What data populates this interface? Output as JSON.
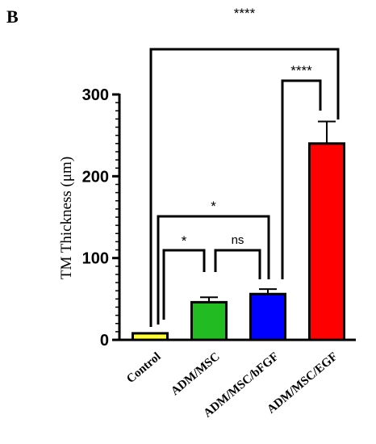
{
  "panel_label": "B",
  "chart_data": {
    "type": "bar",
    "categories": [
      "Control",
      "ADM/MSC",
      "ADM/MSC/bFGF",
      "ADM/MSC/EGF"
    ],
    "values": [
      8,
      46,
      56,
      240
    ],
    "errors": [
      0,
      6,
      6,
      27
    ],
    "colors": [
      "#ffff33",
      "#22bb22",
      "#0000ff",
      "#ff0000"
    ],
    "ylabel": "TM Thickness (μm)",
    "ylim": [
      0,
      300
    ],
    "yticks": [
      0,
      100,
      200,
      300
    ],
    "grid": false,
    "significance": [
      {
        "from": 0,
        "to": 1,
        "label": "*"
      },
      {
        "from": 1,
        "to": 2,
        "label": "ns"
      },
      {
        "from": 0,
        "to": 2,
        "label": "*"
      },
      {
        "from": 2,
        "to": 3,
        "label": "****"
      },
      {
        "from": 0,
        "to": 3,
        "label": "****"
      }
    ]
  }
}
